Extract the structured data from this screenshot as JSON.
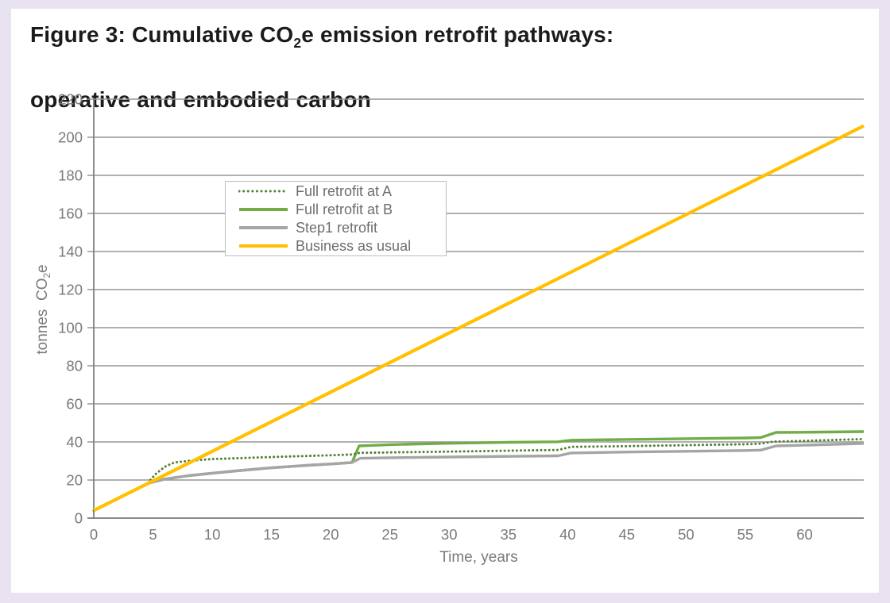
{
  "page": {
    "frame_color": "#e9e3f1",
    "panel_color": "#ffffff"
  },
  "title": {
    "prefix": "Figure 3: Cumulative CO",
    "sub": "2",
    "suffix": "e emission retrofit pathways:",
    "line2": "operative and embodied carbon"
  },
  "chart_data": {
    "type": "line",
    "xlabel": "Time, years",
    "ylabel_prefix": "tonnes  CO",
    "ylabel_sub": "2",
    "ylabel_suffix": "e",
    "xlim": [
      0,
      65
    ],
    "ylim": [
      0,
      220
    ],
    "x_ticks": [
      0,
      5,
      10,
      15,
      20,
      25,
      30,
      35,
      40,
      45,
      50,
      55,
      60
    ],
    "y_ticks": [
      0,
      20,
      40,
      60,
      80,
      100,
      120,
      140,
      160,
      180,
      200,
      220
    ],
    "grid": "horizontal",
    "colors": {
      "grid": "#969696",
      "axis": "#808080",
      "tick_label": "#7a7a7a"
    },
    "legend": {
      "position": "upper-left-inset"
    },
    "series": [
      {
        "name": "Full retrofit at A",
        "color": "#548235",
        "style": "dotted",
        "width": 3,
        "points": [
          [
            0,
            4
          ],
          [
            4.5,
            18
          ],
          [
            5.2,
            23
          ],
          [
            6,
            27
          ],
          [
            6.8,
            29.2
          ],
          [
            8,
            30.1
          ],
          [
            10,
            31
          ],
          [
            15,
            32.1
          ],
          [
            20,
            33
          ],
          [
            21.8,
            33.4
          ],
          [
            22.5,
            34.3
          ],
          [
            25,
            34.5
          ],
          [
            30,
            34.9
          ],
          [
            35,
            35.4
          ],
          [
            39.2,
            35.8
          ],
          [
            40.3,
            37.4
          ],
          [
            45,
            37.8
          ],
          [
            50,
            38.3
          ],
          [
            55,
            38.8
          ],
          [
            56.3,
            39.1
          ],
          [
            57.4,
            40.2
          ],
          [
            60,
            40.6
          ],
          [
            65,
            41.5
          ]
        ]
      },
      {
        "name": "Full retrofit at B",
        "color": "#70AD47",
        "style": "solid",
        "width": 3.4,
        "points": [
          [
            0,
            4
          ],
          [
            4.6,
            18.3
          ],
          [
            6,
            20.5
          ],
          [
            8,
            22.3
          ],
          [
            10,
            23.6
          ],
          [
            12,
            24.8
          ],
          [
            15,
            26.4
          ],
          [
            18,
            27.7
          ],
          [
            20,
            28.4
          ],
          [
            21.8,
            29.2
          ],
          [
            22.4,
            37.9
          ],
          [
            25,
            38.6
          ],
          [
            30,
            39.3
          ],
          [
            35,
            39.8
          ],
          [
            39.2,
            40.1
          ],
          [
            40.3,
            40.9
          ],
          [
            45,
            41.3
          ],
          [
            50,
            41.7
          ],
          [
            55,
            42.1
          ],
          [
            56.3,
            42.3
          ],
          [
            57.6,
            45.0
          ],
          [
            60,
            45.1
          ],
          [
            65,
            45.4
          ]
        ]
      },
      {
        "name": "Step1 retrofit",
        "color": "#A5A5A5",
        "style": "solid",
        "width": 3.4,
        "points": [
          [
            0,
            4
          ],
          [
            4.6,
            18.3
          ],
          [
            6,
            20.5
          ],
          [
            8,
            22.3
          ],
          [
            10,
            23.6
          ],
          [
            12,
            24.8
          ],
          [
            15,
            26.4
          ],
          [
            18,
            27.7
          ],
          [
            20,
            28.4
          ],
          [
            21.8,
            29.2
          ],
          [
            22.5,
            31.4
          ],
          [
            25,
            31.7
          ],
          [
            30,
            32.1
          ],
          [
            35,
            32.4
          ],
          [
            39.2,
            32.7
          ],
          [
            40.3,
            34.2
          ],
          [
            45,
            34.7
          ],
          [
            50,
            35.1
          ],
          [
            55,
            35.5
          ],
          [
            56.3,
            35.7
          ],
          [
            57.6,
            37.9
          ],
          [
            60,
            38.3
          ],
          [
            65,
            39.2
          ]
        ]
      },
      {
        "name": "Business as usual",
        "color": "#FFC000",
        "style": "solid",
        "width": 4.2,
        "points": [
          [
            0,
            4
          ],
          [
            65,
            206
          ]
        ]
      }
    ]
  }
}
